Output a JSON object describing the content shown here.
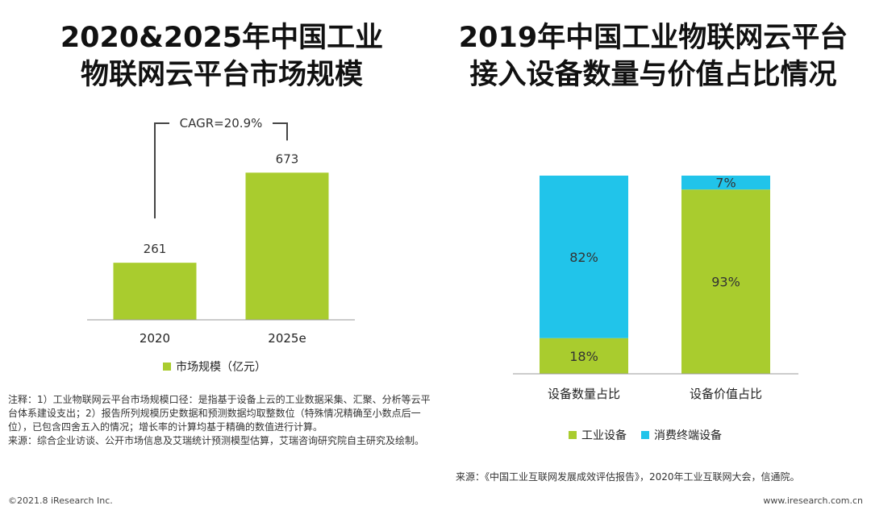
{
  "left_title": [
    "2020&2025年中国工业",
    "物联网云平台市场规模"
  ],
  "right_title": [
    "2019年中国工业物联网云平台",
    "接入设备数量与价值占比情况"
  ],
  "chart_data": [
    {
      "type": "bar",
      "title": "2020&2025年中国工业物联网云平台市场规模",
      "categories": [
        "2020",
        "2025e"
      ],
      "values": [
        261,
        673
      ],
      "value_labels": [
        "261",
        "673"
      ],
      "legend": "市场规模（亿元）",
      "annotation": "CAGR=20.9%",
      "ylim": [
        0,
        700
      ],
      "color": "#a9cc2e"
    },
    {
      "type": "bar",
      "stacked": true,
      "percent": true,
      "title": "2019年中国工业物联网云平台接入设备数量与价值占比情况",
      "categories": [
        "设备数量占比",
        "设备价值占比"
      ],
      "series": [
        {
          "name": "工业设备",
          "values": [
            18,
            93
          ],
          "labels": [
            "18%",
            "93%"
          ],
          "color": "#a9cc2e"
        },
        {
          "name": "消费终端设备",
          "values": [
            82,
            7
          ],
          "labels": [
            "82%",
            "7%"
          ],
          "color": "#21c4ea"
        }
      ],
      "ylim": [
        0,
        100
      ]
    }
  ],
  "notes": [
    "注释：1）工业物联网云平台市场规模口径：是指基于设备上云的工业数据采集、汇聚、分析等云平台体系建设支出；2）报告所列规模历史数据和预测数据均取整数位（特殊情况精确至小数点后一位），已包含四舍五入的情况；增长率的计算均基于精确的数值进行计算。",
    "来源：综合企业访谈、公开市场信息及艾瑞统计预测模型估算，艾瑞咨询研究院自主研究及绘制。"
  ],
  "source_right": "来源：《中国工业互联网发展成效评估报告》，2020年工业互联网大会，信通院。",
  "footer": {
    "copyright": "©2021.8 iResearch Inc.",
    "url": "www.iresearch.com.cn"
  }
}
